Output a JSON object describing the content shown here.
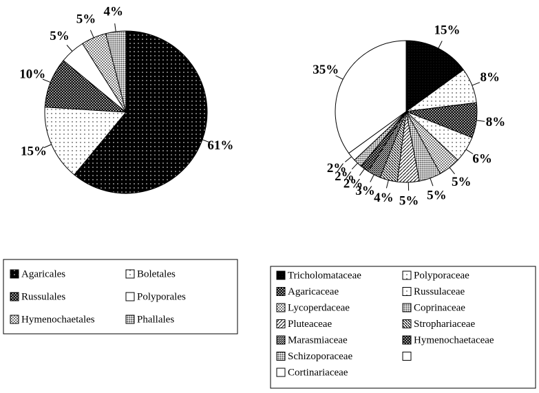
{
  "chart_data": [
    {
      "type": "pie",
      "categories": [
        "Agaricales",
        "Boletales",
        "Russulales",
        "Polyporales",
        "Hymenochaetales",
        "Phallales"
      ],
      "values": [
        61,
        15,
        10,
        5,
        5,
        4
      ],
      "value_labels": [
        "61%",
        "15%",
        "10%",
        "5%",
        "5%",
        "4%"
      ],
      "patterns": [
        "dark-dots",
        "light-dots",
        "dark-check",
        "white",
        "gray-check",
        "fine-check"
      ]
    },
    {
      "type": "pie",
      "categories": [
        "Tricholomataceae",
        "Polyporaceae",
        "Agaricaceae",
        "Russulaceae",
        "Lycoperdaceae",
        "Coprinaceae",
        "Pluteaceae",
        "Strophariaceae",
        "Marasmiaceae",
        "Hymenochaetaceae",
        "Schizoporaceae",
        null,
        "Cortinariaceae"
      ],
      "values": [
        15,
        8,
        8,
        6,
        5,
        5,
        5,
        4,
        3,
        2,
        2,
        2,
        35
      ],
      "value_labels": [
        "15%",
        "8%",
        "8%",
        "6%",
        "5%",
        "5%",
        "5%",
        "4%",
        "3%",
        "2%",
        "2%",
        "2%",
        "35%"
      ],
      "patterns": [
        "dark-solid",
        "light-dots",
        "dark-check",
        "light-dots",
        "gray-check",
        "fine-check",
        "diag-left",
        "diag-right",
        "dense-diag",
        "dark-check",
        "fine-check",
        "white",
        "white"
      ]
    }
  ]
}
